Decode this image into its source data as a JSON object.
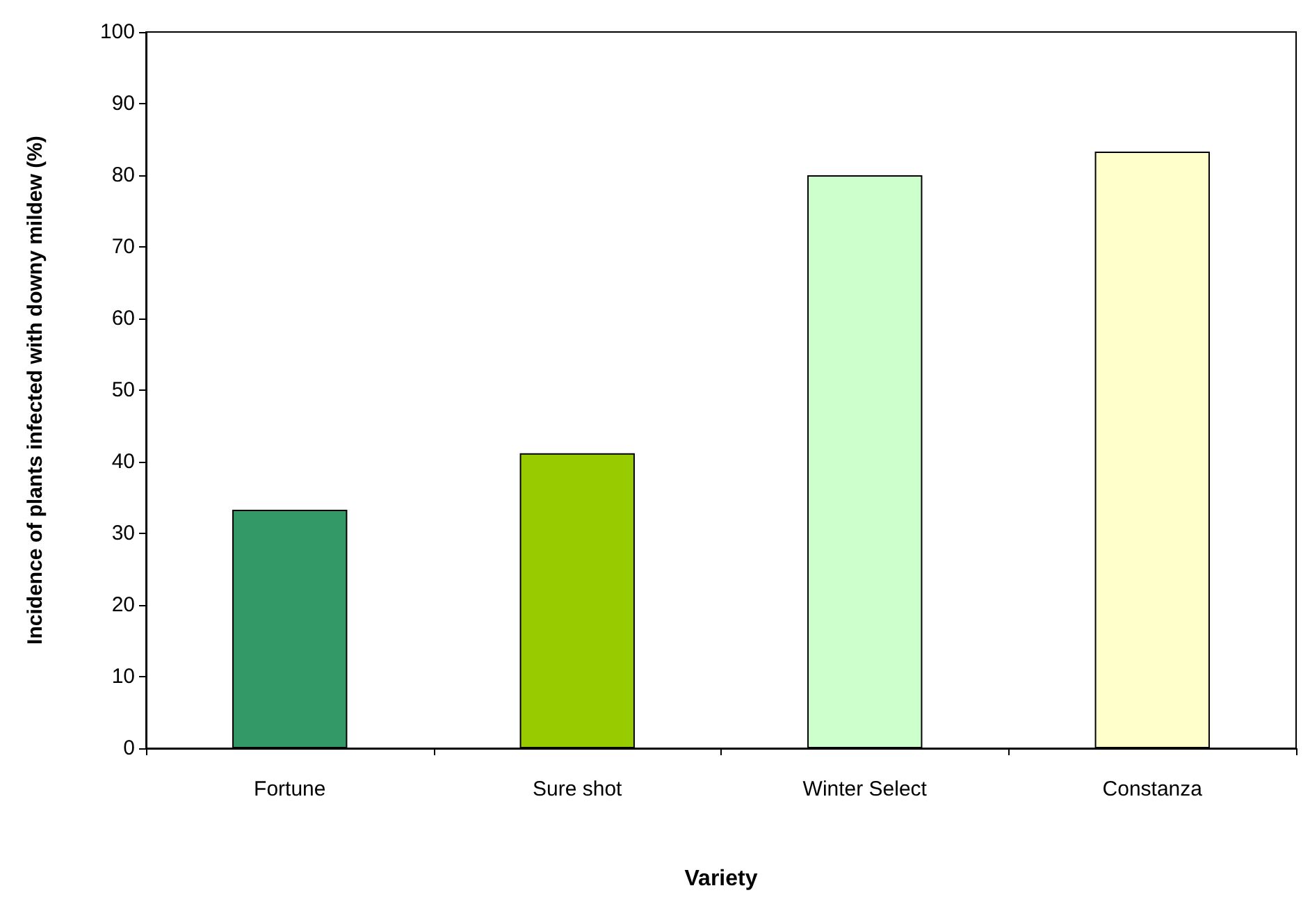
{
  "chart_data": {
    "type": "bar",
    "xlabel": "Variety",
    "ylabel": "Incidence of plants infected with downy mildew (%)",
    "categories": [
      "Fortune",
      "Sure shot",
      "Winter Select",
      "Constanza"
    ],
    "values": [
      33.3,
      41.2,
      80,
      83.3
    ],
    "colors": [
      "#339966",
      "#99cc00",
      "#ccffcc",
      "#ffffcc"
    ],
    "ylim": [
      0,
      100
    ],
    "yticks": [
      0,
      10,
      20,
      30,
      40,
      50,
      60,
      70,
      80,
      90,
      100
    ],
    "grid": false
  }
}
